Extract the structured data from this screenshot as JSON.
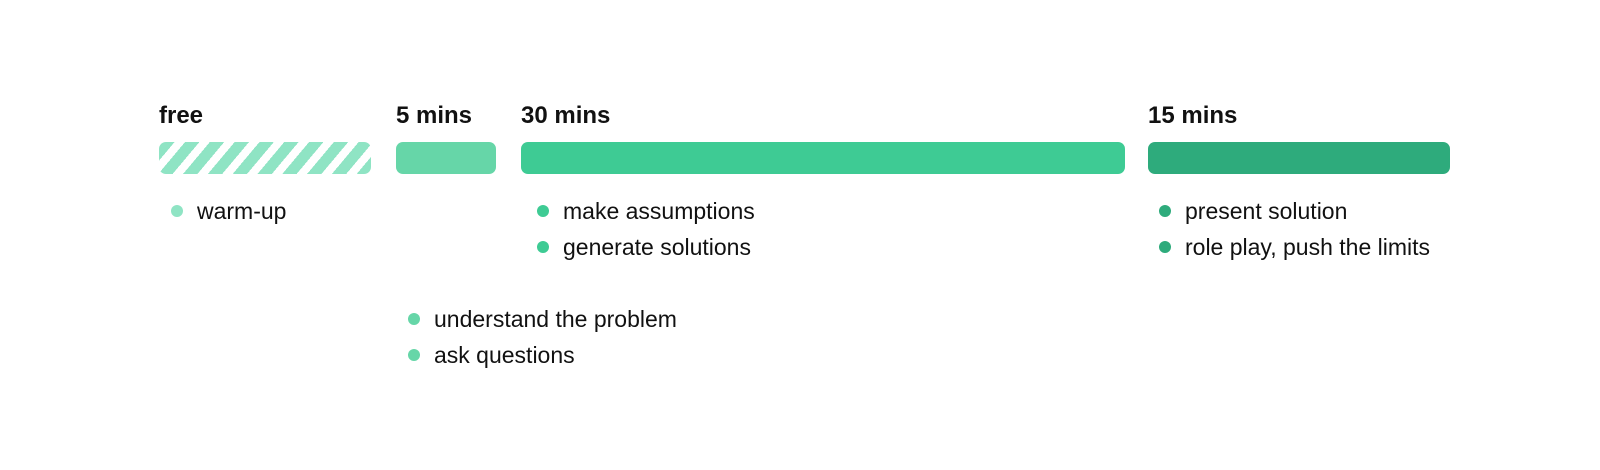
{
  "phases": [
    {
      "label": "free",
      "items": [
        "warm-up"
      ],
      "color": "#8fe4c4",
      "pattern": "striped"
    },
    {
      "label": "5 mins",
      "items": [
        "understand the problem",
        "ask questions"
      ],
      "color": "#66d6a8"
    },
    {
      "label": "30 mins",
      "items": [
        "make assumptions",
        "generate solutions"
      ],
      "color": "#3ecb94"
    },
    {
      "label": "15 mins",
      "items": [
        "present solution",
        "role play, push the limits"
      ],
      "color": "#2eab7c"
    }
  ]
}
